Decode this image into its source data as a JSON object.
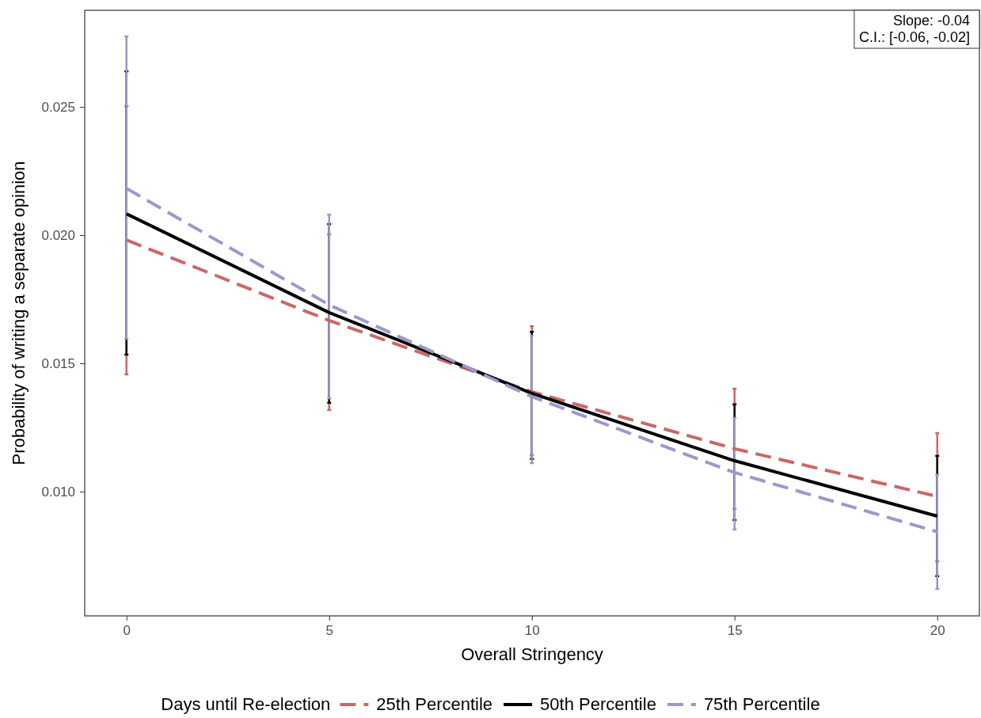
{
  "chart_data": {
    "type": "line",
    "xlabel": "Overall Stringency",
    "ylabel": "Probability of writing a separate opinion",
    "legend_title": "Days until Re-election",
    "legend": "bottom",
    "grid": false,
    "x": [
      0,
      5,
      10,
      15,
      20
    ],
    "xlim": [
      -1.03,
      21.04
    ],
    "xticks": [
      0,
      5,
      10,
      15,
      20
    ],
    "ylim": [
      0.00515,
      0.02877
    ],
    "yticks": [
      {
        "value": 0.01,
        "label": "0.010"
      },
      {
        "value": 0.015,
        "label": "0.015"
      },
      {
        "value": 0.02,
        "label": "0.020"
      },
      {
        "value": 0.025,
        "label": "0.025"
      }
    ],
    "series": [
      {
        "name": "25th Percentile",
        "color": "#cc6666",
        "line_style": "dashed",
        "values": [
          0.01981,
          0.01667,
          0.01389,
          0.01167,
          0.00981
        ],
        "errors": [
          [
            0.01457,
            0.02503
          ],
          [
            0.01318,
            0.02003
          ],
          [
            0.01142,
            0.01645
          ],
          [
            0.00932,
            0.01401
          ],
          [
            0.00728,
            0.01228
          ]
        ]
      },
      {
        "name": "50th Percentile",
        "color": "#000000",
        "line_style": "solid",
        "values": [
          0.02083,
          0.01698,
          0.01383,
          0.0112,
          0.00904
        ],
        "errors": [
          [
            0.01534,
            0.02639
          ],
          [
            0.01346,
            0.02043
          ],
          [
            0.01127,
            0.01623
          ],
          [
            0.00889,
            0.0134
          ],
          [
            0.0067,
            0.01139
          ]
        ]
      },
      {
        "name": "75th Percentile",
        "color": "#9999cc",
        "line_style": "dashed",
        "values": [
          0.02182,
          0.01728,
          0.0137,
          0.01074,
          0.00843
        ],
        "errors": [
          [
            0.01596,
            0.02775
          ],
          [
            0.01364,
            0.0208
          ],
          [
            0.01111,
            0.01608
          ],
          [
            0.00852,
            0.01287
          ],
          [
            0.0062,
            0.01065
          ]
        ]
      }
    ],
    "annotations": [
      "Slope: -0.04",
      "C.I.: [-0.06, -0.02]"
    ]
  }
}
